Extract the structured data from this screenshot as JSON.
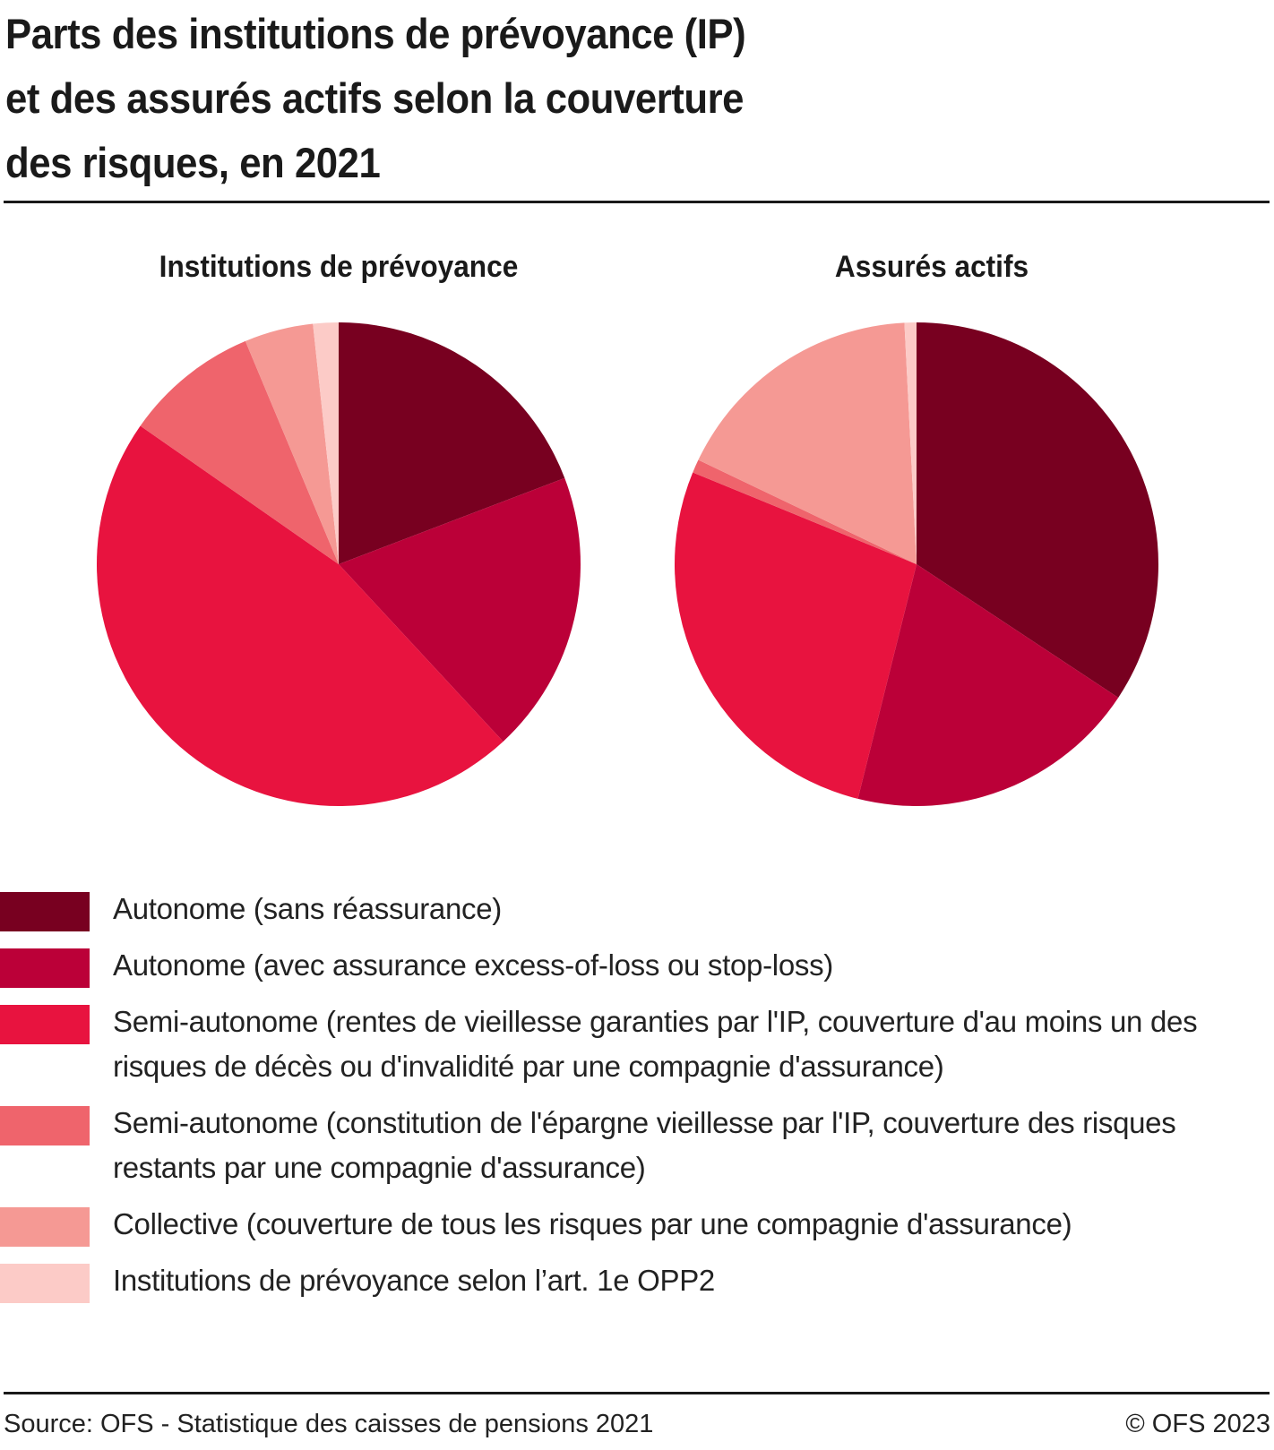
{
  "chart_data": [
    {
      "type": "pie",
      "title": "Institutions de prévoyance",
      "categories": [
        "Autonome (sans réassurance)",
        "Autonome (avec assurance excess-of-loss ou stop-loss)",
        "Semi-autonome (rentes de vieillesse garanties par l'IP, couverture d'au moins un des risques de décès ou d'invalidité par une compagnie d'assurance)",
        "Semi-autonome (constitution de l'épargne vieillesse par l'IP, couverture des risques restants par une compagnie d'assurance)",
        "Collective (couverture de tous les risques par une compagnie d'assurance)",
        "Institutions de prévoyance selon l’art. 1e OPP2"
      ],
      "values": [
        19.2,
        18.9,
        46.6,
        9.0,
        4.6,
        1.7
      ],
      "unit": "%"
    },
    {
      "type": "pie",
      "title": "Assurés actifs",
      "categories": [
        "Autonome (sans réassurance)",
        "Autonome (avec assurance excess-of-loss ou stop-loss)",
        "Semi-autonome (rentes de vieillesse garanties par l'IP, couverture d'au moins un des risques de décès ou d'invalidité par une compagnie d'assurance)",
        "Semi-autonome (constitution de l'épargne vieillesse par l'IP, couverture des risques restants par une compagnie d'assurance)",
        "Collective (couverture de tous les risques par une compagnie d'assurance)",
        "Institutions de prévoyance selon l’art. 1e OPP2"
      ],
      "values": [
        34.3,
        19.6,
        27.3,
        0.9,
        17.1,
        0.8
      ],
      "unit": "%"
    }
  ],
  "title": "Parts des institutions de prévoyance (IP) et des assurés actifs selon la couverture des risques, en 2021",
  "title_lines": [
    "Parts des institutions de prévoyance (IP)",
    "et des assurés actifs selon la couverture",
    "des risques, en 2021"
  ],
  "pies": {
    "left_title": "Institutions de prévoyance",
    "right_title": "Assurés actifs"
  },
  "colors": [
    "#780020",
    "#bb0038",
    "#e8133f",
    "#ef646c",
    "#f59994",
    "#fccbc7"
  ],
  "legend": [
    {
      "label": "Autonome (sans réassurance)",
      "color": "#780020"
    },
    {
      "label": "Autonome (avec assurance excess-of-loss ou stop-loss)",
      "color": "#bb0038"
    },
    {
      "label": "Semi-autonome (rentes de vieillesse garanties par l'IP, couverture d'au moins un des risques de décès ou d'invalidité par une compagnie d'assurance)",
      "color": "#e8133f"
    },
    {
      "label": "Semi-autonome (constitution de l'épargne vieillesse par l'IP, couverture des risques restants par une compagnie d'assurance)",
      "color": "#ef646c"
    },
    {
      "label": "Collective (couverture de tous les risques par une compagnie d'assurance)",
      "color": "#f59994"
    },
    {
      "label": "Institutions de prévoyance selon l’art. 1e OPP2",
      "color": "#fccbc7"
    }
  ],
  "footer": {
    "source": "Source: OFS - Statistique des caisses de pensions 2021",
    "copyright": "© OFS 2023"
  }
}
